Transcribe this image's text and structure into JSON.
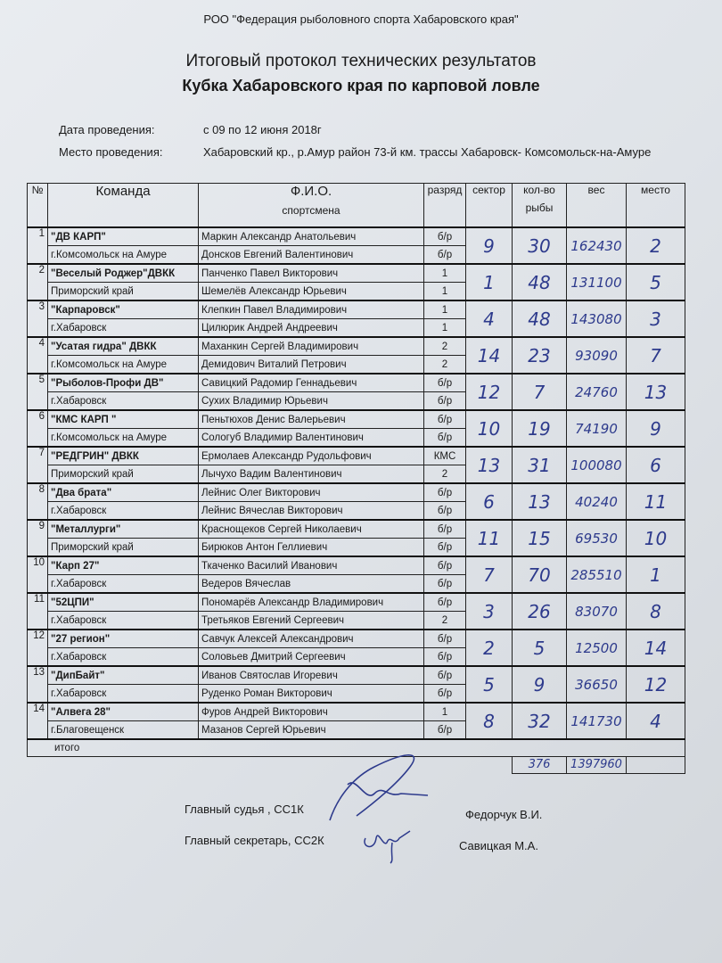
{
  "header": {
    "organization": "РОО \"Федерация рыболовного спорта Хабаровского края\"",
    "title": "Итоговый  протокол технических результатов",
    "subtitle": "Кубка  Хабаровского края по карповой ловле",
    "date_label": "Дата проведения:",
    "date_value": "с 09 по 12 июня 2018г",
    "place_label": "Место проведения:",
    "place_value": "Хабаровский кр., р.Амур район 73-й км. трассы Хабаровск- Комсомольск-на-Амуре"
  },
  "table": {
    "columns": {
      "num": "№",
      "team": "Команда",
      "fio": "Ф.И.О.",
      "fio2": "спортсмена",
      "rank": "разряд",
      "sector": "сектор",
      "count": "кол-во",
      "count2": "рыбы",
      "weight": "вес",
      "place": "место"
    },
    "rows": [
      {
        "n": "1",
        "team": "\"ДВ КАРП\"",
        "city": "г.Комсомольск на Амуре",
        "p1": "Маркин Александр Анатольевич",
        "r1": "б/р",
        "p2": "Донсков Евгений Валентинович",
        "r2": "б/р",
        "sector": "9",
        "count": "30",
        "weight": "162430",
        "place": "2"
      },
      {
        "n": "2",
        "team": "\"Веселый Роджер\"ДВКК",
        "city": "Приморский край",
        "p1": "Панченко Павел Викторович",
        "r1": "1",
        "p2": "Шемелёв Александр Юрьевич",
        "r2": "1",
        "sector": "1",
        "count": "48",
        "weight": "131100",
        "place": "5"
      },
      {
        "n": "3",
        "team": "\"Карпаровск\"",
        "city": "г.Хабаровск",
        "p1": "Клепкин Павел Владимирович",
        "r1": "1",
        "p2": "Цилюрик Андрей Андреевич",
        "r2": "1",
        "sector": "4",
        "count": "48",
        "weight": "143080",
        "place": "3"
      },
      {
        "n": "4",
        "team": "\"Усатая гидра\" ДВКК",
        "city": "г.Комсомольск на Амуре",
        "p1": "Маханкин Сергей Владимирович",
        "r1": "2",
        "p2": "Демидович Виталий Петрович",
        "r2": "2",
        "sector": "14",
        "count": "23",
        "weight": "93090",
        "place": "7"
      },
      {
        "n": "5",
        "team": "\"Рыболов-Профи ДВ\"",
        "city": "г.Хабаровск",
        "p1": "Савицкий Радомир Геннадьевич",
        "r1": "б/р",
        "p2": "Сухих Владимир Юрьевич",
        "r2": "б/р",
        "sector": "12",
        "count": "7",
        "weight": "24760",
        "place": "13"
      },
      {
        "n": "6",
        "team": "\"КМС КАРП \"",
        "city": "г.Комсомольск на Амуре",
        "p1": "Пеньтюхов Денис Валерьевич",
        "r1": "б/р",
        "p2": "Сологуб Владимир Валентинович",
        "r2": "б/р",
        "sector": "10",
        "count": "19",
        "weight": "74190",
        "place": "9"
      },
      {
        "n": "7",
        "team": "\"РЕДГРИН\" ДВКК",
        "city": "Приморский край",
        "p1": "Ермолаев Александр Рудольфович",
        "r1": "КМС",
        "p2": "Лычухо Вадим Валентинович",
        "r2": "2",
        "sector": "13",
        "count": "31",
        "weight": "100080",
        "place": "6"
      },
      {
        "n": "8",
        "team": "\"Два брата\"",
        "city": "г.Хабаровск",
        "p1": "Лейнис Олег Викторович",
        "r1": "б/р",
        "p2": "Лейнис Вячеслав Викторович",
        "r2": "б/р",
        "sector": "6",
        "count": "13",
        "weight": "40240",
        "place": "11"
      },
      {
        "n": "9",
        "team": "\"Металлурги\"",
        "city": "Приморский край",
        "p1": "Краснощеков Сергей Николаевич",
        "r1": "б/р",
        "p2": "Бирюков Антон Геллиевич",
        "r2": "б/р",
        "sector": "11",
        "count": "15",
        "weight": "69530",
        "place": "10"
      },
      {
        "n": "10",
        "team": "\"Карп 27\"",
        "city": "г.Хабаровск",
        "p1": "Ткаченко Василий Иванович",
        "r1": "б/р",
        "p2": "Ведеров Вячеслав",
        "r2": "б/р",
        "sector": "7",
        "count": "70",
        "weight": "285510",
        "place": "1"
      },
      {
        "n": "11",
        "team": "\"52ЦПИ\"",
        "city": "г.Хабаровск",
        "p1": "Пономарёв Александр Владимирович",
        "r1": "б/р",
        "p2": "Третьяков Евгений Сергеевич",
        "r2": "2",
        "sector": "3",
        "count": "26",
        "weight": "83070",
        "place": "8"
      },
      {
        "n": "12",
        "team": "\"27 регион\"",
        "city": "г.Хабаровск",
        "p1": "Савчук Алексей Александрович",
        "r1": "б/р",
        "p2": "Соловьев Дмитрий Сергеевич",
        "r2": "б/р",
        "sector": "2",
        "count": "5",
        "weight": "12500",
        "place": "14"
      },
      {
        "n": "13",
        "team": "\"ДипБайт\"",
        "city": "г.Хабаровск",
        "p1": "Иванов Святослав Игоревич",
        "r1": "б/р",
        "p2": "Руденко Роман Викторович",
        "r2": "б/р",
        "sector": "5",
        "count": "9",
        "weight": "36650",
        "place": "12"
      },
      {
        "n": "14",
        "team": "\"Алвега 28\"",
        "city": "г.Благовещенск",
        "p1": "Фуров Андрей Викторович",
        "r1": "1",
        "p2": "Мазанов Сергей Юрьевич",
        "r2": "б/р",
        "sector": "8",
        "count": "32",
        "weight": "141730",
        "place": "4"
      }
    ],
    "total_label": "итого",
    "total_count": "376",
    "total_weight": "1397960"
  },
  "signatures": {
    "judge_label": "Главный судья , СС1К",
    "judge_name": "Федорчук В.И.",
    "secretary_label": "Главный секретарь, СС2К",
    "secretary_name": "Савицкая М.А."
  },
  "colors": {
    "ink": "#2d3a8c",
    "paper": "#e4e7eb"
  }
}
